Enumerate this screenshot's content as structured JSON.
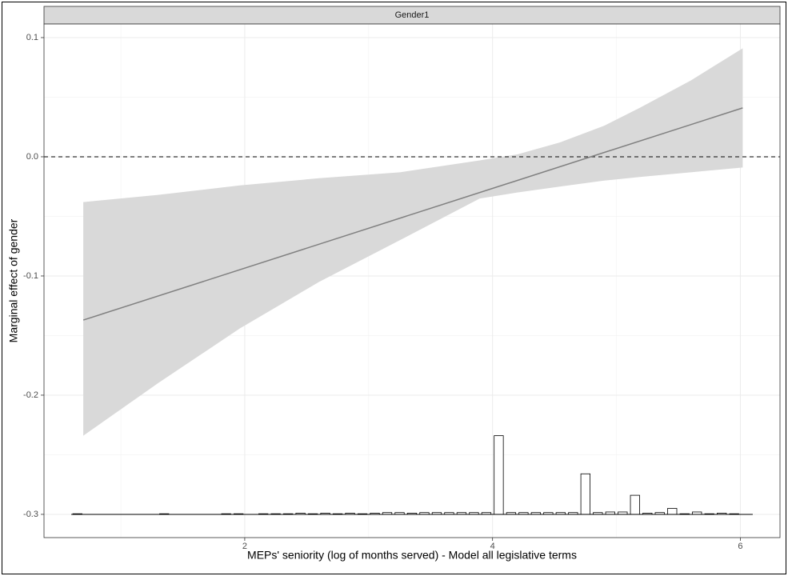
{
  "chart_data": {
    "type": "line",
    "facet": "Gender1",
    "xlabel": "MEPs' seniority (log of months served) - Model all legislative terms",
    "ylabel": "Marginal effect of gender",
    "x": [
      0.697,
      6.019
    ],
    "y": [
      -0.137,
      0.041
    ],
    "color": "#808080",
    "ribbon": {
      "color": "#d9d9d9",
      "x": [
        0.697,
        1.3,
        1.961,
        2.6,
        3.252,
        3.897,
        4.2,
        4.542,
        4.9,
        5.187,
        5.6,
        6.019
      ],
      "upper": [
        -0.038,
        -0.032,
        -0.024,
        -0.018,
        -0.013,
        -0.003,
        0.002,
        0.012,
        0.026,
        0.041,
        0.064,
        0.091
      ],
      "lower": [
        -0.234,
        -0.19,
        -0.144,
        -0.105,
        -0.07,
        -0.035,
        -0.03,
        -0.025,
        -0.02,
        -0.017,
        -0.013,
        -0.009
      ]
    },
    "hline": 0,
    "histogram": {
      "base": -0.3,
      "bins": [
        0.6,
        0.7,
        0.8,
        0.9,
        1.0,
        1.1,
        1.2,
        1.3,
        1.4,
        1.5,
        1.6,
        1.7,
        1.8,
        1.9,
        2.0,
        2.1,
        2.2,
        2.3,
        2.4,
        2.5,
        2.6,
        2.7,
        2.8,
        2.9,
        3.0,
        3.1,
        3.2,
        3.3,
        3.4,
        3.5,
        3.6,
        3.7,
        3.8,
        3.9,
        4.0,
        4.1,
        4.2,
        4.3,
        4.4,
        4.5,
        4.6,
        4.7,
        4.8,
        4.9,
        5.0,
        5.1,
        5.2,
        5.3,
        5.4,
        5.5,
        5.6,
        5.7,
        5.8,
        5.9,
        6.0,
        6.1
      ],
      "values": [
        -0.2995,
        -0.3,
        -0.3,
        -0.3,
        -0.3,
        -0.3,
        -0.3,
        -0.2995,
        -0.3,
        -0.3,
        -0.3,
        -0.3,
        -0.2995,
        -0.2995,
        -0.3,
        -0.2995,
        -0.2995,
        -0.2995,
        -0.299,
        -0.2995,
        -0.299,
        -0.2995,
        -0.299,
        -0.2995,
        -0.299,
        -0.2985,
        -0.2985,
        -0.299,
        -0.2985,
        -0.2985,
        -0.2985,
        -0.2985,
        -0.2985,
        -0.2985,
        -0.234,
        -0.2985,
        -0.2985,
        -0.2985,
        -0.2985,
        -0.2985,
        -0.2985,
        -0.266,
        -0.2985,
        -0.298,
        -0.298,
        -0.284,
        -0.299,
        -0.2985,
        -0.295,
        -0.2995,
        -0.298,
        -0.2995,
        -0.299,
        -0.2995,
        -0.3
      ]
    },
    "xlim": [
      0.38,
      6.32
    ],
    "ylim": [
      -0.3195,
      0.1114
    ],
    "xticks": [
      2,
      4,
      6
    ],
    "yticks": [
      0.1,
      {
        "value": 0,
        "label": "0.0"
      },
      -0.1,
      -0.2,
      -0.3
    ],
    "minor_xticks": [
      1,
      3,
      5
    ],
    "minor_yticks": [
      0.05,
      -0.05,
      -0.15,
      -0.25
    ],
    "grid": true
  }
}
